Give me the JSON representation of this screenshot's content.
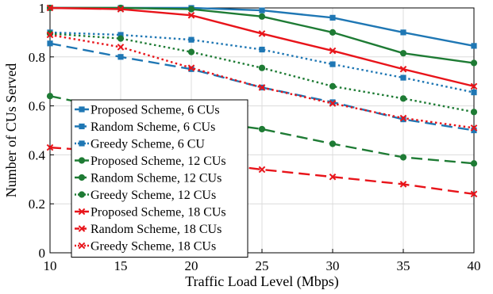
{
  "chart_data": {
    "type": "line",
    "title": "",
    "xlabel": "Traffic Load Level (Mbps)",
    "ylabel": "Number of CUs Served",
    "x": [
      10,
      15,
      20,
      25,
      30,
      35,
      40
    ],
    "xlim": [
      10,
      40
    ],
    "ylim": [
      0,
      1
    ],
    "xticks": [
      10,
      15,
      20,
      25,
      30,
      35,
      40
    ],
    "yticks": [
      0,
      0.2,
      0.4,
      0.6,
      0.8,
      1
    ],
    "ytick_labels": [
      "0",
      "0.2",
      "0.4",
      "0.6",
      "0.8",
      "1"
    ],
    "grid": true,
    "legend_position": "left-bottom",
    "series": [
      {
        "name": "Proposed Scheme, 6 CUs",
        "color": "#1f77b4",
        "marker": "square",
        "dash": "solid",
        "values": [
          1.0,
          1.0,
          1.0,
          0.99,
          0.96,
          0.9,
          0.845
        ]
      },
      {
        "name": "Random Scheme, 6 CUs",
        "color": "#1f77b4",
        "marker": "square",
        "dash": "dashed",
        "values": [
          0.855,
          0.8,
          0.75,
          0.675,
          0.615,
          0.545,
          0.5
        ]
      },
      {
        "name": "Greedy Scheme, 6 CU",
        "color": "#1f77b4",
        "marker": "square",
        "dash": "dotted",
        "values": [
          0.9,
          0.89,
          0.87,
          0.83,
          0.77,
          0.715,
          0.655
        ]
      },
      {
        "name": "Proposed Scheme, 12 CUs",
        "color": "#1e7b34",
        "marker": "circle",
        "dash": "solid",
        "values": [
          1.0,
          1.0,
          0.995,
          0.965,
          0.9,
          0.815,
          0.775
        ]
      },
      {
        "name": "Random Scheme, 12 CUs",
        "color": "#1e7b34",
        "marker": "circle",
        "dash": "dashed",
        "values": [
          0.64,
          0.58,
          0.545,
          0.505,
          0.445,
          0.39,
          0.365
        ]
      },
      {
        "name": "Greedy Scheme, 12 CUs",
        "color": "#1e7b34",
        "marker": "circle",
        "dash": "dotted",
        "values": [
          0.895,
          0.875,
          0.82,
          0.755,
          0.68,
          0.63,
          0.575
        ]
      },
      {
        "name": "Proposed Scheme, 18 CUs",
        "color": "#e8141a",
        "marker": "x",
        "dash": "solid",
        "values": [
          1.0,
          0.995,
          0.97,
          0.895,
          0.825,
          0.75,
          0.68
        ]
      },
      {
        "name": "Random Scheme, 18 CUs",
        "color": "#e8141a",
        "marker": "x",
        "dash": "dashed",
        "values": [
          0.43,
          0.41,
          0.375,
          0.34,
          0.31,
          0.28,
          0.24
        ]
      },
      {
        "name": "Greedy Scheme, 18 CUs",
        "color": "#e8141a",
        "marker": "x",
        "dash": "dotted",
        "values": [
          0.89,
          0.84,
          0.755,
          0.675,
          0.61,
          0.55,
          0.51
        ]
      }
    ]
  }
}
